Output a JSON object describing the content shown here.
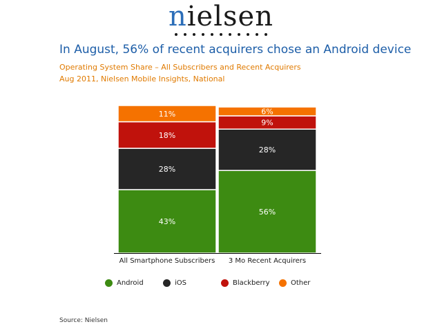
{
  "logo": {
    "text": "nielsen",
    "first_letter": "n",
    "rest": "ielsen"
  },
  "headline": "In August, 56% of recent acquirers chose an Android device",
  "subtitle1": "Operating System Share – All Subscribers and Recent Acquirers",
  "subtitle2": "Aug 2011, Nielsen Mobile Insights, National",
  "source": "Source: Nielsen",
  "chart_data": {
    "type": "bar",
    "stacked": true,
    "categories": [
      "All Smartphone Subscribers",
      "3 Mo Recent Acquirers"
    ],
    "series": [
      {
        "name": "Android",
        "color": "#3d8b12",
        "values": [
          43,
          56
        ],
        "labels": [
          "43%",
          "56%"
        ]
      },
      {
        "name": "iOS",
        "color": "#262626",
        "values": [
          28,
          28
        ],
        "labels": [
          "28%",
          "28%"
        ]
      },
      {
        "name": "Blackberry",
        "color": "#c0120c",
        "values": [
          18,
          9
        ],
        "labels": [
          "18%",
          "9%"
        ]
      },
      {
        "name": "Other",
        "color": "#f57200",
        "values": [
          11,
          6
        ],
        "labels": [
          "11%",
          "6%"
        ]
      }
    ],
    "ylim": [
      0,
      100
    ],
    "legend_position": "bottom",
    "grid": false
  }
}
